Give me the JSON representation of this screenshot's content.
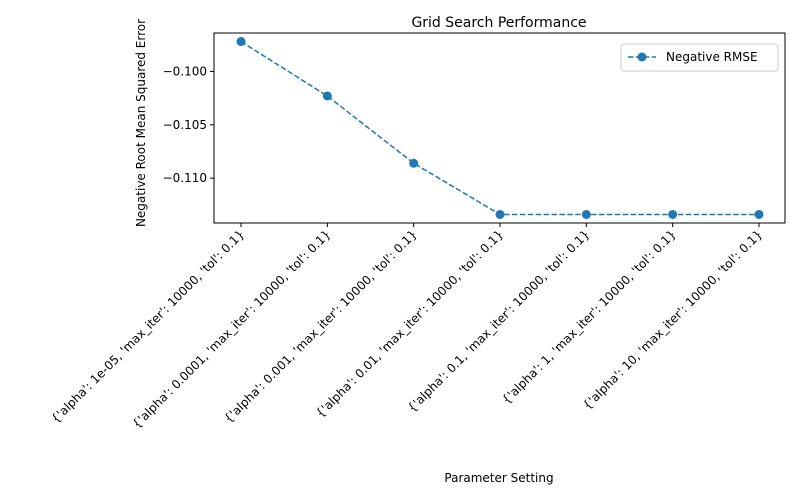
{
  "chart_data": {
    "type": "line",
    "title": "Grid Search Performance",
    "xlabel": "Parameter Setting",
    "ylabel": "Negative Root Mean Squared Error",
    "categories": [
      "{'alpha': 1e-05, 'max_iter': 10000, 'tol': 0.1}",
      "{'alpha': 0.0001, 'max_iter': 10000, 'tol': 0.1}",
      "{'alpha': 0.001, 'max_iter': 10000, 'tol': 0.1}",
      "{'alpha': 0.01, 'max_iter': 10000, 'tol': 0.1}",
      "{'alpha': 0.1, 'max_iter': 10000, 'tol': 0.1}",
      "{'alpha': 1, 'max_iter': 10000, 'tol': 0.1}",
      "{'alpha': 10, 'max_iter': 10000, 'tol': 0.1}"
    ],
    "series": [
      {
        "name": "Negative RMSE",
        "values": [
          -0.0972,
          -0.1023,
          -0.1086,
          -0.1134,
          -0.1134,
          -0.1134,
          -0.1134
        ],
        "color": "#1f77b4",
        "line_style": "dashed",
        "marker": "circle"
      }
    ],
    "ylim": [
      -0.1142,
      -0.0964
    ],
    "yticks": [
      -0.1,
      -0.105,
      -0.11
    ],
    "ytick_labels": [
      "−0.100",
      "−0.105",
      "−0.110"
    ],
    "grid": false,
    "legend_position": "upper right"
  }
}
